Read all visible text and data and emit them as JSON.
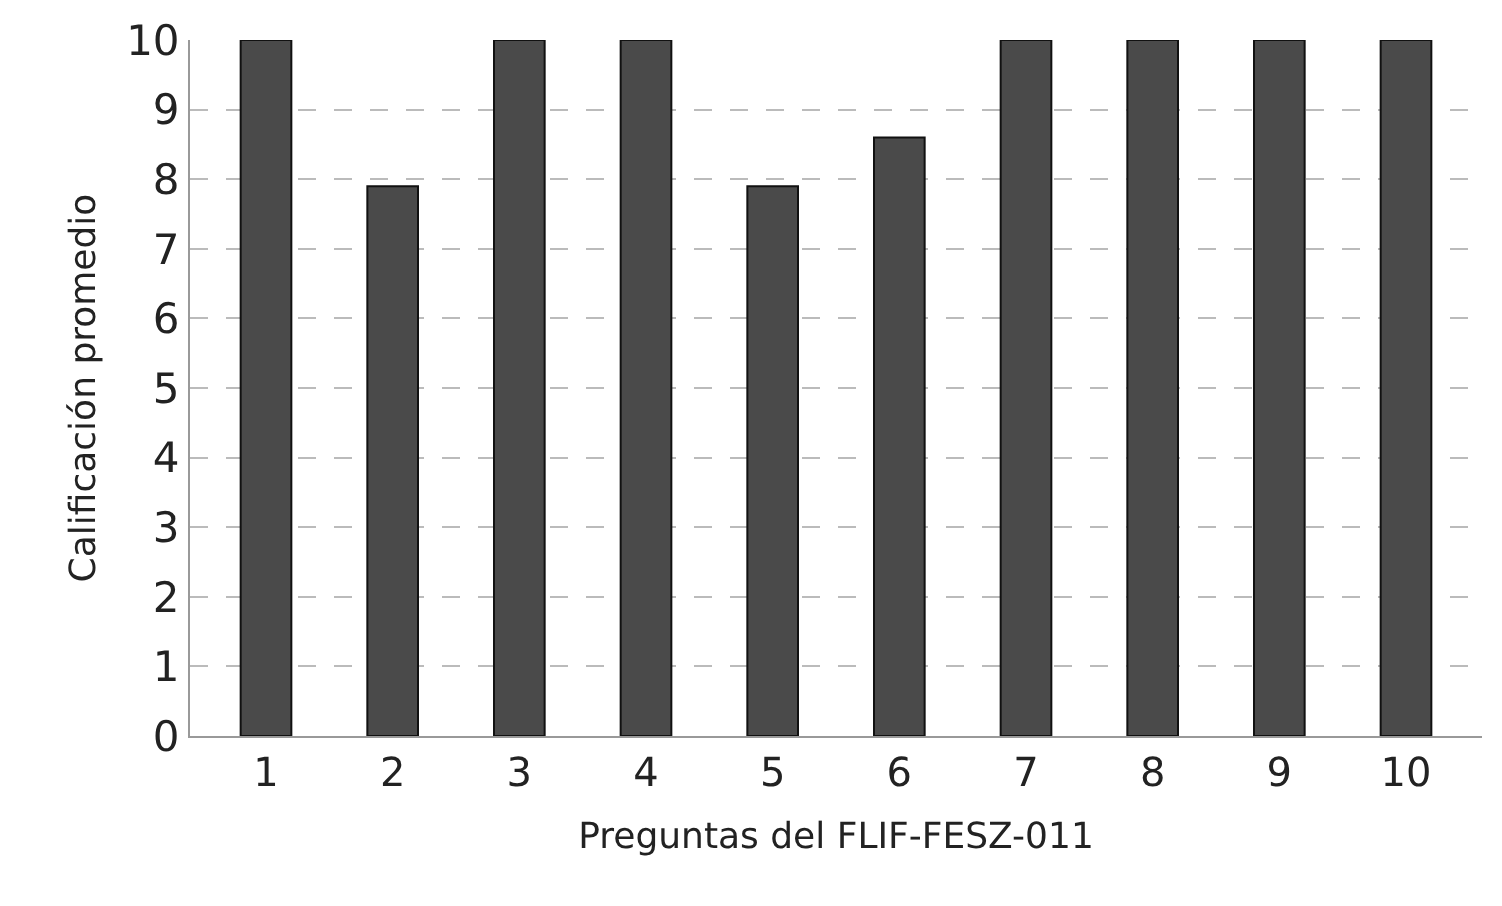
{
  "chart_data": {
    "type": "bar",
    "xlabel": "Preguntas del FLIF-FESZ-011",
    "ylabel": "Calificación promedio",
    "categories": [
      "1",
      "2",
      "3",
      "4",
      "5",
      "6",
      "7",
      "8",
      "9",
      "10"
    ],
    "values": [
      10,
      7.9,
      10,
      10,
      7.9,
      8.6,
      10,
      10,
      10,
      10
    ],
    "color": "#4a4a4a",
    "ylim": [
      0,
      10
    ],
    "yticks": [
      0,
      1,
      2,
      3,
      4,
      5,
      6,
      7,
      8,
      9,
      10
    ],
    "grid": "y"
  }
}
